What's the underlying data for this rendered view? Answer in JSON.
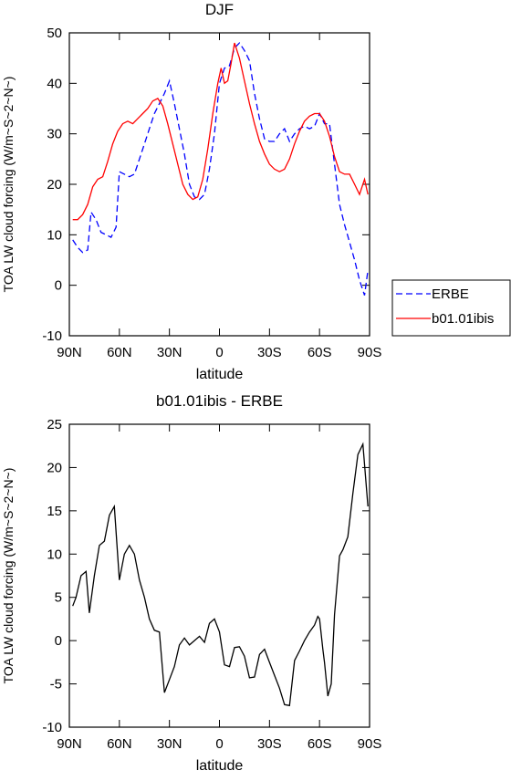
{
  "chart_data": [
    {
      "type": "line",
      "title": "DJF",
      "xlabel": "latitude",
      "ylabel": "TOA LW cloud forcing (W/m~S~2~N~)",
      "xlim": [
        90,
        -90
      ],
      "xticks": [
        {
          "value": 90,
          "label": "90N"
        },
        {
          "value": 60,
          "label": "60N"
        },
        {
          "value": 30,
          "label": "30N"
        },
        0,
        {
          "value": -30,
          "label": "30S"
        },
        {
          "value": -60,
          "label": "60S"
        },
        {
          "value": -90,
          "label": "90S"
        }
      ],
      "ylim": [
        -10,
        50
      ],
      "yticks": [
        -10,
        0,
        10,
        20,
        30,
        40,
        50
      ],
      "legend": "outside-right",
      "series": [
        {
          "name": "ERBE",
          "color": "#0000ff",
          "style": "dashed",
          "x": [
            88,
            85,
            82,
            79,
            77,
            74,
            71,
            68,
            65,
            62,
            60,
            57,
            54,
            51,
            48,
            45,
            42,
            39,
            36,
            33,
            30,
            27,
            24,
            21,
            18,
            15,
            12,
            9,
            6,
            3,
            0,
            -3,
            -6,
            -9,
            -12,
            -15,
            -18,
            -21,
            -24,
            -27,
            -30,
            -33,
            -36,
            -39,
            -42,
            -45,
            -48,
            -51,
            -54,
            -57,
            -60,
            -63,
            -66,
            -69,
            -72,
            -75,
            -78,
            -81,
            -84,
            -87,
            -89
          ],
          "values": [
            9,
            7.5,
            6.5,
            7,
            14.5,
            13,
            10.5,
            10,
            9.5,
            11.5,
            22.5,
            22,
            21.5,
            22,
            25,
            28,
            31,
            34,
            36,
            38,
            40.5,
            36,
            31,
            26,
            20,
            17.5,
            17,
            18,
            23,
            30,
            40,
            43,
            43.5,
            47,
            48,
            46.5,
            44.5,
            38,
            33,
            29,
            28.5,
            28.5,
            30,
            31,
            28.5,
            30,
            31,
            31.5,
            31,
            31.5,
            34,
            32,
            32,
            24,
            16,
            12,
            8.5,
            5,
            1,
            -2,
            3
          ]
        },
        {
          "name": "b01.01ibis",
          "color": "#ff0000",
          "style": "solid",
          "x": [
            88,
            85,
            82,
            79,
            76,
            73,
            70,
            67,
            64,
            61,
            58,
            55,
            52,
            49,
            46,
            43,
            40,
            37,
            34,
            31,
            28,
            25,
            22,
            19,
            16,
            13,
            10,
            7,
            4,
            1,
            -1,
            -3,
            -5,
            -7,
            -9,
            -12,
            -15,
            -18,
            -21,
            -24,
            -27,
            -30,
            -33,
            -36,
            -39,
            -42,
            -45,
            -48,
            -51,
            -54,
            -57,
            -60,
            -63,
            -66,
            -69,
            -72,
            -75,
            -78,
            -81,
            -84,
            -87,
            -89
          ],
          "values": [
            13,
            13,
            14,
            16,
            19.5,
            21,
            21.5,
            24.5,
            28,
            30.5,
            32,
            32.5,
            32,
            33,
            34,
            35,
            36.5,
            37,
            35.5,
            32,
            28,
            24,
            20,
            18,
            17,
            17.5,
            21,
            27,
            34,
            40,
            43,
            40,
            40.5,
            44,
            48,
            45,
            40.5,
            36,
            32,
            28.5,
            26,
            24,
            23,
            22.5,
            23,
            25,
            28,
            30.5,
            32.5,
            33.5,
            34,
            34,
            32.5,
            29.5,
            25.5,
            22.5,
            22,
            22,
            20,
            18,
            21,
            18
          ]
        }
      ]
    },
    {
      "type": "line",
      "title": "b01.01ibis - ERBE",
      "xlabel": "latitude",
      "ylabel": "TOA LW cloud forcing (W/m~S~2~N~)",
      "xlim": [
        90,
        -90
      ],
      "xticks": [
        {
          "value": 90,
          "label": "90N"
        },
        {
          "value": 60,
          "label": "60N"
        },
        {
          "value": 30,
          "label": "30N"
        },
        0,
        {
          "value": -30,
          "label": "30S"
        },
        {
          "value": -60,
          "label": "60S"
        },
        {
          "value": -90,
          "label": "90S"
        }
      ],
      "ylim": [
        -10,
        25
      ],
      "yticks": [
        -10,
        -5,
        0,
        5,
        10,
        15,
        20,
        25
      ],
      "series": [
        {
          "color": "#000000",
          "style": "solid",
          "x": [
            88,
            86,
            83,
            80,
            78,
            75,
            72,
            69,
            66,
            63,
            60,
            57,
            54,
            51,
            48,
            45,
            42,
            39,
            36,
            33,
            30,
            27,
            24,
            21,
            18,
            15,
            12,
            9,
            6,
            3,
            0,
            -3,
            -6,
            -9,
            -12,
            -15,
            -18,
            -21,
            -24,
            -27,
            -30,
            -33,
            -36,
            -39,
            -42,
            -45,
            -48,
            -51,
            -54,
            -57,
            -59,
            -60,
            -62,
            -63,
            -65,
            -67,
            -69,
            -72,
            -74,
            -77,
            -80,
            -83,
            -86,
            -89
          ],
          "values": [
            4,
            5,
            7.5,
            8,
            3.2,
            7.5,
            11,
            11.5,
            14.5,
            15.5,
            7,
            10,
            11,
            10,
            7,
            5,
            2.5,
            1.2,
            1,
            -6,
            -4.5,
            -3,
            -0.5,
            0.3,
            -0.5,
            0,
            0.5,
            -0.2,
            2,
            2.5,
            1,
            -2.8,
            -3,
            -0.8,
            -0.7,
            -1.8,
            -4.3,
            -4.2,
            -1.6,
            -1,
            -2.5,
            -4,
            -5.5,
            -7.4,
            -7.5,
            -2.3,
            -1.2,
            0,
            1,
            1.8,
            2.8,
            2.5,
            -1,
            -2.5,
            -6.4,
            -5,
            3,
            9.8,
            10.5,
            12,
            17,
            21.5,
            22.7,
            15.5
          ]
        }
      ]
    }
  ]
}
